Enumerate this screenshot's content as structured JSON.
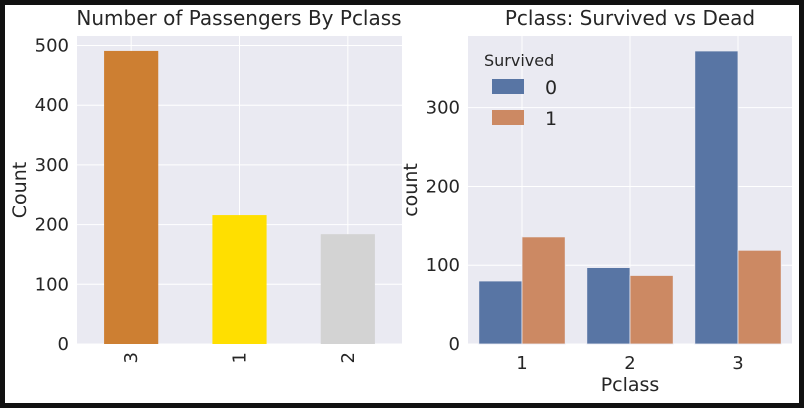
{
  "chart_data": [
    {
      "type": "bar",
      "title": "Number of Passengers By Pclass",
      "xlabel": "",
      "ylabel": "Count",
      "categories": [
        "3",
        "1",
        "2"
      ],
      "values": [
        491,
        216,
        184
      ],
      "colors": [
        "#CD7F32",
        "#FFDF00",
        "#D3D3D3"
      ],
      "ylim": [
        0,
        516
      ],
      "yticks": [
        0,
        100,
        200,
        300,
        400,
        500
      ],
      "grid": true
    },
    {
      "type": "bar",
      "title": "Pclass: Survived vs Dead",
      "xlabel": "Pclass",
      "ylabel": "count",
      "categories": [
        "1",
        "2",
        "3"
      ],
      "series": [
        {
          "name": "0",
          "values": [
            80,
            97,
            372
          ],
          "color": "#5875a4"
        },
        {
          "name": "1",
          "values": [
            136,
            87,
            119
          ],
          "color": "#cc8963"
        }
      ],
      "legend_title": "Survived",
      "legend_position": "top-left",
      "ylim": [
        0,
        391
      ],
      "yticks": [
        0,
        100,
        200,
        300
      ],
      "grid": true
    }
  ]
}
